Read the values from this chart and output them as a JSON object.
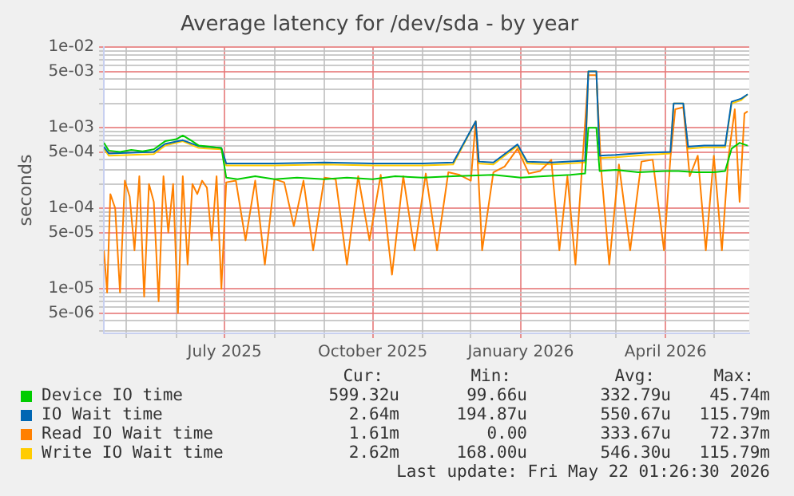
{
  "chart_data": {
    "type": "line",
    "title": "Average latency for /dev/sda - by year",
    "ylabel": "seconds",
    "log": "y",
    "grid": true,
    "legend": "bottom",
    "marker": "none",
    "line_style": "solid",
    "xlim": [
      "2025-04-17",
      "2026-05-23"
    ],
    "xticks": [
      {
        "value": "2025-05-01",
        "label": null
      },
      {
        "value": "2025-06-01",
        "label": null
      },
      {
        "value": "2025-07-01",
        "label": "July 2025"
      },
      {
        "value": "2025-08-01",
        "label": null
      },
      {
        "value": "2025-09-01",
        "label": null
      },
      {
        "value": "2025-10-01",
        "label": "October 2025"
      },
      {
        "value": "2025-11-01",
        "label": null
      },
      {
        "value": "2025-12-01",
        "label": null
      },
      {
        "value": "2026-01-01",
        "label": "January 2026"
      },
      {
        "value": "2026-02-01",
        "label": null
      },
      {
        "value": "2026-03-01",
        "label": null
      },
      {
        "value": "2026-04-01",
        "label": "April 2026"
      },
      {
        "value": "2026-05-01",
        "label": null
      }
    ],
    "ylim": [
      2.8e-06,
      0.01
    ],
    "yticks": [
      {
        "value": 3e-06,
        "label": null
      },
      {
        "value": 4e-06,
        "label": null
      },
      {
        "value": 5e-06,
        "label": "5e-06"
      },
      {
        "value": 6e-06,
        "label": null
      },
      {
        "value": 7e-06,
        "label": null
      },
      {
        "value": 8e-06,
        "label": null
      },
      {
        "value": 9e-06,
        "label": null
      },
      {
        "value": 1e-05,
        "label": "1e-05"
      },
      {
        "value": 2e-05,
        "label": null
      },
      {
        "value": 3e-05,
        "label": null
      },
      {
        "value": 4e-05,
        "label": null
      },
      {
        "value": 5e-05,
        "label": "5e-05"
      },
      {
        "value": 6e-05,
        "label": null
      },
      {
        "value": 7e-05,
        "label": null
      },
      {
        "value": 8e-05,
        "label": null
      },
      {
        "value": 9e-05,
        "label": null
      },
      {
        "value": 0.0001,
        "label": "1e-04"
      },
      {
        "value": 0.0002,
        "label": null
      },
      {
        "value": 0.0003,
        "label": null
      },
      {
        "value": 0.0004,
        "label": null
      },
      {
        "value": 0.0005,
        "label": "5e-04"
      },
      {
        "value": 0.0006,
        "label": null
      },
      {
        "value": 0.0007,
        "label": null
      },
      {
        "value": 0.0008,
        "label": null
      },
      {
        "value": 0.0009,
        "label": null
      },
      {
        "value": 0.001,
        "label": "1e-03"
      },
      {
        "value": 0.002,
        "label": null
      },
      {
        "value": 0.003,
        "label": null
      },
      {
        "value": 0.004,
        "label": null
      },
      {
        "value": 0.005,
        "label": "5e-03"
      },
      {
        "value": 0.006,
        "label": null
      },
      {
        "value": 0.007,
        "label": null
      },
      {
        "value": 0.008,
        "label": null
      },
      {
        "value": 0.009,
        "label": null
      },
      {
        "value": 0.01,
        "label": "1e-02"
      }
    ],
    "series": [
      {
        "name": "Device IO time",
        "color": "#00cc00",
        "x": [
          "2025-04-17",
          "2025-04-20",
          "2025-04-27",
          "2025-05-04",
          "2025-05-11",
          "2025-05-18",
          "2025-05-25",
          "2025-06-01",
          "2025-06-05",
          "2025-06-10",
          "2025-06-15",
          "2025-06-22",
          "2025-06-29",
          "2025-07-02",
          "2025-07-09",
          "2025-07-20",
          "2025-08-01",
          "2025-08-15",
          "2025-09-01",
          "2025-09-15",
          "2025-10-01",
          "2025-10-15",
          "2025-11-01",
          "2025-11-20",
          "2025-12-15",
          "2026-01-01",
          "2026-01-15",
          "2026-02-01",
          "2026-02-10",
          "2026-02-12",
          "2026-02-17",
          "2026-02-19",
          "2026-03-01",
          "2026-03-15",
          "2026-04-01",
          "2026-04-09",
          "2026-04-20",
          "2026-05-01",
          "2026-05-08",
          "2026-05-12",
          "2026-05-17",
          "2026-05-22"
        ],
        "values": [
          0.00065,
          0.00052,
          0.0005,
          0.00053,
          0.00051,
          0.00054,
          0.00068,
          0.00072,
          0.0008,
          0.0007,
          0.0006,
          0.00058,
          0.00056,
          0.00024,
          0.00023,
          0.00025,
          0.00023,
          0.00024,
          0.00023,
          0.00024,
          0.00023,
          0.00025,
          0.00024,
          0.00025,
          0.00026,
          0.00024,
          0.00025,
          0.00026,
          0.00027,
          0.001,
          0.001,
          0.00029,
          0.0003,
          0.00028,
          0.00029,
          0.00029,
          0.00028,
          0.00028,
          0.00029,
          0.00055,
          0.00065,
          0.0006
        ]
      },
      {
        "name": "IO Wait time",
        "color": "#0066b3",
        "x": [
          "2025-04-17",
          "2025-04-20",
          "2025-05-04",
          "2025-05-18",
          "2025-05-25",
          "2025-06-05",
          "2025-06-15",
          "2025-06-29",
          "2025-07-02",
          "2025-08-01",
          "2025-09-01",
          "2025-10-01",
          "2025-11-01",
          "2025-11-20",
          "2025-12-04",
          "2025-12-06",
          "2025-12-15",
          "2025-12-30",
          "2026-01-05",
          "2026-01-20",
          "2026-02-10",
          "2026-02-12",
          "2026-02-17",
          "2026-02-19",
          "2026-03-01",
          "2026-03-20",
          "2026-04-04",
          "2026-04-06",
          "2026-04-12",
          "2026-04-15",
          "2026-04-25",
          "2026-05-08",
          "2026-05-12",
          "2026-05-18",
          "2026-05-22"
        ],
        "values": [
          0.00058,
          0.00048,
          0.00049,
          0.0005,
          0.00063,
          0.0007,
          0.00059,
          0.00056,
          0.00036,
          0.00036,
          0.00037,
          0.00036,
          0.00036,
          0.00037,
          0.0012,
          0.00038,
          0.00037,
          0.00062,
          0.00038,
          0.00037,
          0.00039,
          0.005,
          0.005,
          0.00045,
          0.00046,
          0.00049,
          0.0005,
          0.002,
          0.002,
          0.00058,
          0.0006,
          0.0006,
          0.0021,
          0.0023,
          0.0026
        ]
      },
      {
        "name": "Read IO Wait time",
        "color": "#ff8000",
        "x": [
          "2025-04-17",
          "2025-04-19",
          "2025-04-21",
          "2025-04-24",
          "2025-04-27",
          "2025-04-30",
          "2025-05-03",
          "2025-05-06",
          "2025-05-09",
          "2025-05-12",
          "2025-05-15",
          "2025-05-18",
          "2025-05-21",
          "2025-05-24",
          "2025-05-27",
          "2025-05-30",
          "2025-06-02",
          "2025-06-05",
          "2025-06-08",
          "2025-06-11",
          "2025-06-14",
          "2025-06-17",
          "2025-06-20",
          "2025-06-23",
          "2025-06-26",
          "2025-06-29",
          "2025-07-02",
          "2025-07-08",
          "2025-07-14",
          "2025-07-20",
          "2025-07-26",
          "2025-08-01",
          "2025-08-07",
          "2025-08-13",
          "2025-08-19",
          "2025-08-25",
          "2025-09-01",
          "2025-09-08",
          "2025-09-15",
          "2025-09-22",
          "2025-09-29",
          "2025-10-06",
          "2025-10-13",
          "2025-10-20",
          "2025-10-27",
          "2025-11-03",
          "2025-11-10",
          "2025-11-17",
          "2025-11-24",
          "2025-12-01",
          "2025-12-04",
          "2025-12-08",
          "2025-12-15",
          "2025-12-22",
          "2025-12-30",
          "2026-01-06",
          "2026-01-13",
          "2026-01-20",
          "2026-01-25",
          "2026-01-30",
          "2026-02-04",
          "2026-02-08",
          "2026-02-12",
          "2026-02-17",
          "2026-02-20",
          "2026-02-25",
          "2026-03-03",
          "2026-03-10",
          "2026-03-17",
          "2026-03-24",
          "2026-03-31",
          "2026-04-04",
          "2026-04-07",
          "2026-04-12",
          "2026-04-16",
          "2026-04-21",
          "2026-04-26",
          "2026-05-01",
          "2026-05-06",
          "2026-05-10",
          "2026-05-14",
          "2026-05-17",
          "2026-05-20",
          "2026-05-22"
        ],
        "values": [
          3e-05,
          9e-06,
          0.00015,
          0.0001,
          9e-06,
          0.00022,
          0.00014,
          3e-05,
          0.00025,
          8e-06,
          0.0002,
          0.00012,
          7e-06,
          0.00025,
          5e-05,
          0.0002,
          5e-06,
          0.00025,
          2e-05,
          0.0002,
          0.00015,
          0.00022,
          0.00018,
          4e-05,
          0.00025,
          1e-05,
          0.00021,
          0.00022,
          4e-05,
          0.00022,
          2e-05,
          0.00023,
          0.00021,
          6e-05,
          0.00022,
          3e-05,
          0.00024,
          0.00023,
          2e-05,
          0.00025,
          4e-05,
          0.00026,
          1.5e-05,
          0.00025,
          3e-05,
          0.00027,
          3e-05,
          0.00028,
          0.00026,
          0.00022,
          0.0012,
          3e-05,
          0.00028,
          0.00033,
          0.00055,
          0.00027,
          0.00029,
          0.0004,
          3e-05,
          0.00025,
          2e-05,
          0.0003,
          0.0045,
          0.0045,
          0.0003,
          2e-05,
          0.00035,
          3e-05,
          0.00038,
          0.0004,
          3e-05,
          0.00042,
          0.0017,
          0.0018,
          0.00025,
          0.00045,
          3e-05,
          0.00045,
          3e-05,
          0.00042,
          0.0017,
          0.00012,
          0.0015,
          0.0016
        ]
      },
      {
        "name": "Write IO Wait time",
        "color": "#ffcc00",
        "x": [
          "2025-04-17",
          "2025-04-20",
          "2025-05-04",
          "2025-05-18",
          "2025-05-25",
          "2025-06-05",
          "2025-06-15",
          "2025-06-29",
          "2025-07-02",
          "2025-08-01",
          "2025-09-01",
          "2025-10-01",
          "2025-11-01",
          "2025-11-20",
          "2025-12-04",
          "2025-12-06",
          "2025-12-15",
          "2025-12-30",
          "2026-01-05",
          "2026-01-20",
          "2026-02-10",
          "2026-02-12",
          "2026-02-17",
          "2026-02-19",
          "2026-03-01",
          "2026-03-20",
          "2026-04-04",
          "2026-04-06",
          "2026-04-12",
          "2026-04-15",
          "2026-04-25",
          "2026-05-08",
          "2026-05-12",
          "2026-05-18",
          "2026-05-22"
        ],
        "values": [
          0.00055,
          0.00045,
          0.00046,
          0.00047,
          0.0006,
          0.00068,
          0.00056,
          0.00054,
          0.00034,
          0.00034,
          0.00035,
          0.00034,
          0.00034,
          0.00035,
          0.0012,
          0.00036,
          0.00035,
          0.0006,
          0.00036,
          0.00035,
          0.00037,
          0.005,
          0.005,
          0.00042,
          0.00043,
          0.00046,
          0.00048,
          0.002,
          0.002,
          0.00055,
          0.00057,
          0.00057,
          0.002,
          0.0022,
          0.0026
        ]
      }
    ],
    "annotations": [
      "Cur:",
      "Min:",
      "Avg:",
      "Max:",
      "599.32u",
      "99.66u",
      "332.79u",
      "45.74m",
      "2.64m",
      "194.87u",
      "550.67u",
      "115.79m",
      "1.61m",
      "0.00",
      "333.67u",
      "72.37m",
      "2.62m",
      "168.00u",
      "546.30u",
      "115.79m",
      "Last update: Fri May 22 01:26:30 2026"
    ]
  }
}
